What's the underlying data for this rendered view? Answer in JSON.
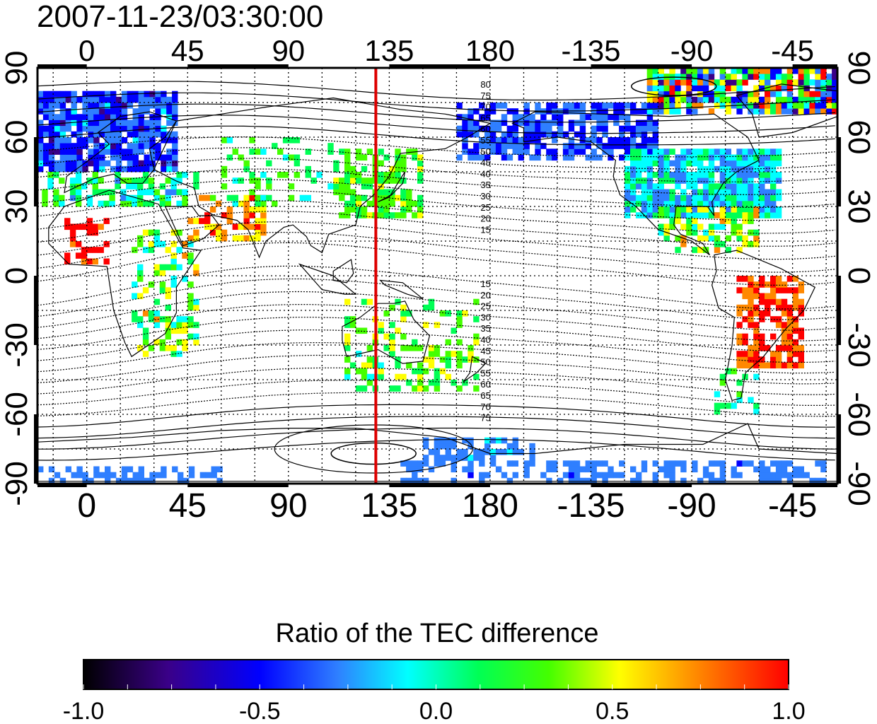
{
  "map": {
    "title": "2007-11-23/03:30:00",
    "projection": "equirectangular",
    "lon_range": [
      -22,
      335
    ],
    "lat_range": [
      -90,
      90
    ],
    "top_lon_ticks": [
      "0",
      "45",
      "90",
      "135",
      "180",
      "-135",
      "-90",
      "-45"
    ],
    "bottom_lon_ticks": [
      "0",
      "45",
      "90",
      "135",
      "180",
      "-135",
      "-90",
      "-45"
    ],
    "left_lat_ticks": [
      "90",
      "60",
      "30",
      "0",
      "-30",
      "-60",
      "-90"
    ],
    "right_lat_ticks": [
      "90",
      "60",
      "30",
      "0",
      "-30",
      "-60",
      "-90"
    ],
    "meridian_lon": 129,
    "meridian_color": "#dd0000",
    "contour_labels_north": [
      "80",
      "75",
      "70",
      "65",
      "60",
      "55",
      "50",
      "45",
      "40",
      "35",
      "30",
      "25",
      "20",
      "15"
    ],
    "contour_labels_south": [
      "15",
      "20",
      "25",
      "30",
      "35",
      "40",
      "45",
      "50",
      "55",
      "60",
      "65",
      "70",
      "75"
    ],
    "grid": "dotted",
    "coastlines": true
  },
  "colorbar": {
    "title": "Ratio of the TEC difference",
    "range": [
      -1.0,
      1.0
    ],
    "tick_labels": [
      "-1.0",
      "-0.5",
      "0.0",
      "0.5",
      "1.0"
    ],
    "colors": [
      "#000000",
      "#3a0088",
      "#0000ff",
      "#2f7fff",
      "#00ffff",
      "#00ff55",
      "#44ff00",
      "#ffff00",
      "#ff8800",
      "#ff0000"
    ]
  }
}
